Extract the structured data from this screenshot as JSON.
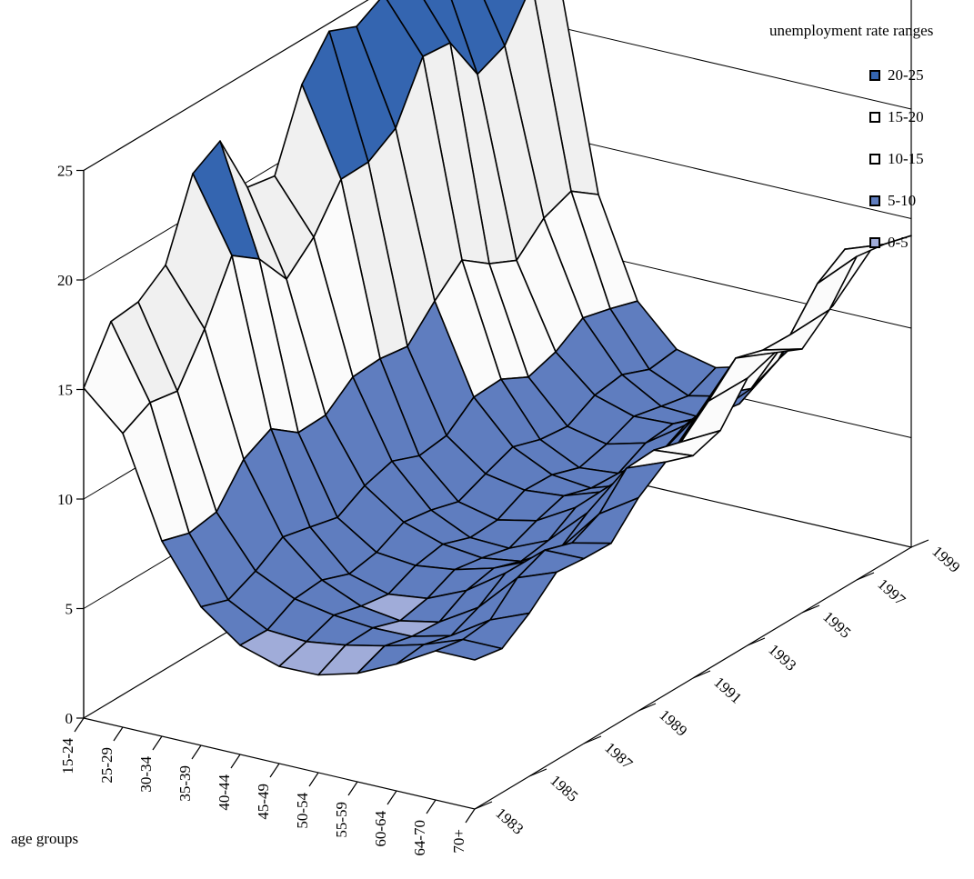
{
  "chart_data": {
    "type": "surface3d",
    "x_axis_label": "age groups",
    "x_categories": [
      "15-24",
      "25-29",
      "30-34",
      "35-39",
      "40-44",
      "45-49",
      "50-54",
      "55-59",
      "60-64",
      "64-70",
      "70+"
    ],
    "y_ticks": [
      "1983",
      "1985",
      "1987",
      "1989",
      "1991",
      "1993",
      "1995",
      "1997",
      "1999"
    ],
    "z_ticks": [
      "0",
      "5",
      "10",
      "15",
      "20",
      "25"
    ],
    "z_range": [
      0,
      25
    ],
    "legend_title": "unemployment rate ranges",
    "legend": [
      {
        "label": "20-25",
        "color": "#3465b0"
      },
      {
        "label": "15-20",
        "color": "#ffffff"
      },
      {
        "label": "10-15",
        "color": "#ffffff"
      },
      {
        "label": "5-10",
        "color": "#5f7dbf"
      },
      {
        "label": "0-5",
        "color": "#a0acd9"
      }
    ]
  }
}
